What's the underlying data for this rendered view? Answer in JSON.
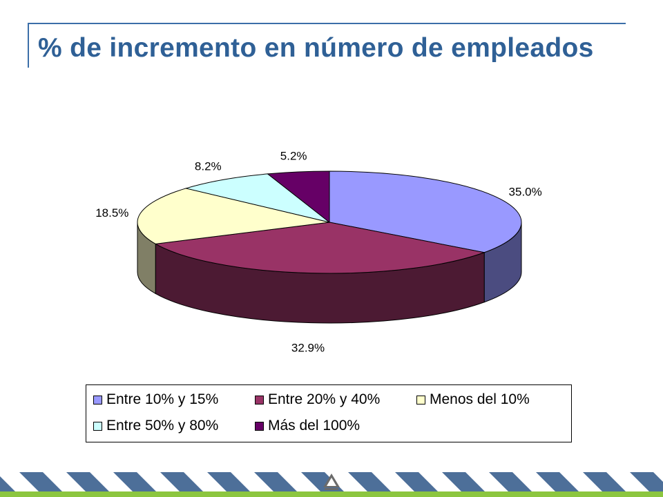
{
  "title": "% de incremento en número de empleados",
  "chart_data": {
    "type": "pie",
    "title": "% de incremento en número de empleados",
    "slices": [
      {
        "label": "Entre 10% y 15%",
        "value": 35.0,
        "value_label": "35.0%",
        "color": "#9999ff",
        "side_color": "#4b4c80"
      },
      {
        "label": "Entre 20% y 40%",
        "value": 32.9,
        "value_label": "32.9%",
        "color": "#993366",
        "side_color": "#4c1a33"
      },
      {
        "label": "Menos del 10%",
        "value": 18.5,
        "value_label": "18.5%",
        "color": "#ffffcc",
        "side_color": "#807f66"
      },
      {
        "label": "Entre  50% y 80%",
        "value": 8.2,
        "value_label": "8.2%",
        "color": "#ccffff",
        "side_color": "#668080"
      },
      {
        "label": "Más del 100%",
        "value": 5.2,
        "value_label": "5.2%",
        "color": "#660066",
        "side_color": "#330033"
      }
    ],
    "legend_position": "bottom",
    "style": "3d"
  },
  "theme": {
    "title_color": "#2f6096",
    "rule_color": "#3b6ea8",
    "footer_stripe_color": "#4d6f99",
    "footer_green": "#8cc63f"
  }
}
